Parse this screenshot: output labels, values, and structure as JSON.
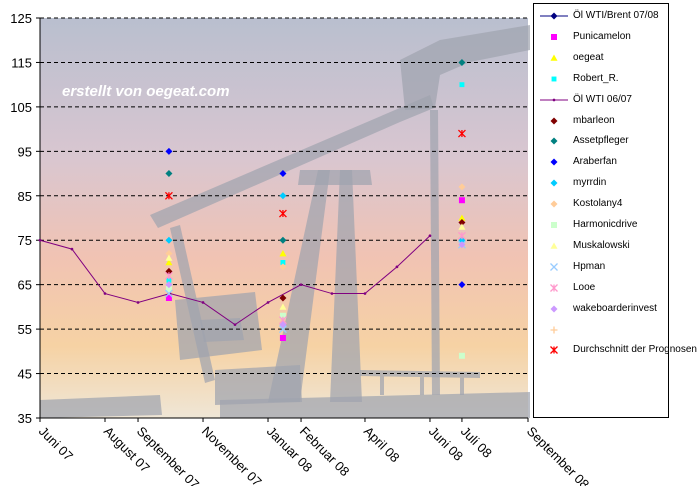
{
  "chart_data": {
    "type": "line",
    "title": "",
    "xlabel": "",
    "ylabel": "",
    "watermark": "erstellt von oegeat.com",
    "ylim": [
      35,
      125
    ],
    "y_ticks": [
      35,
      45,
      55,
      65,
      75,
      85,
      95,
      105,
      115,
      125
    ],
    "x_range": [
      "2007-06-01",
      "2008-09-01"
    ],
    "x_tick_labels": [
      {
        "date": "2007-06-01",
        "label": "Juni 07"
      },
      {
        "date": "2007-08-01",
        "label": "August 07"
      },
      {
        "date": "2007-09-01",
        "label": "September 07"
      },
      {
        "date": "2007-11-01",
        "label": "November 07"
      },
      {
        "date": "2008-01-01",
        "label": "Januar 08"
      },
      {
        "date": "2008-02-01",
        "label": "Februar 08"
      },
      {
        "date": "2008-04-01",
        "label": "April 08"
      },
      {
        "date": "2008-06-01",
        "label": "Juni 08"
      },
      {
        "date": "2008-07-01",
        "label": "Juli 08"
      },
      {
        "date": "2008-09-01",
        "label": "September 08"
      }
    ],
    "horizontal_grid": "dashed",
    "legend_position": "right",
    "series": [
      {
        "name": "Öl WTI/Brent 07/08",
        "color": "#000080",
        "marker": "diamond",
        "line": true,
        "points": []
      },
      {
        "name": "Punicamelon",
        "color": "#ff00ff",
        "marker": "square",
        "line": false,
        "points": [
          [
            "2007-09-30",
            62
          ],
          [
            "2008-01-15",
            53
          ],
          [
            "2008-07-01",
            84
          ]
        ]
      },
      {
        "name": "oegeat",
        "color": "#ffff00",
        "marker": "triangle",
        "line": false,
        "points": [
          [
            "2007-09-30",
            70
          ],
          [
            "2008-01-15",
            72
          ],
          [
            "2008-07-01",
            80
          ]
        ]
      },
      {
        "name": "Robert_R.",
        "color": "#00ffff",
        "marker": "square-small",
        "line": false,
        "points": [
          [
            "2007-09-30",
            66
          ],
          [
            "2008-01-15",
            70
          ],
          [
            "2008-07-01",
            110
          ]
        ]
      },
      {
        "name": "Öl WTI 06/07",
        "color": "#800080",
        "marker": "dot",
        "line": true,
        "points": [
          [
            "2007-06-01",
            75
          ],
          [
            "2007-07-01",
            73
          ],
          [
            "2007-08-01",
            63
          ],
          [
            "2007-09-01",
            61
          ],
          [
            "2007-10-01",
            63
          ],
          [
            "2007-11-01",
            61
          ],
          [
            "2007-12-01",
            56
          ],
          [
            "2008-01-01",
            61
          ],
          [
            "2008-02-01",
            65
          ],
          [
            "2008-03-01",
            63
          ],
          [
            "2008-04-01",
            63
          ],
          [
            "2008-05-01",
            69
          ],
          [
            "2008-06-01",
            76
          ]
        ]
      },
      {
        "name": "mbarleon",
        "color": "#800000",
        "marker": "diamond",
        "line": false,
        "points": [
          [
            "2007-09-30",
            68
          ],
          [
            "2008-01-15",
            62
          ],
          [
            "2008-07-01",
            79
          ]
        ]
      },
      {
        "name": "Assetpfleger",
        "color": "#008080",
        "marker": "diamond",
        "line": false,
        "points": [
          [
            "2007-09-30",
            90
          ],
          [
            "2008-01-15",
            75
          ],
          [
            "2008-07-01",
            115
          ]
        ]
      },
      {
        "name": "Araberfan",
        "color": "#0000ff",
        "marker": "diamond",
        "line": false,
        "points": [
          [
            "2007-09-30",
            95
          ],
          [
            "2008-01-15",
            90
          ],
          [
            "2008-07-01",
            65
          ]
        ]
      },
      {
        "name": "myrrdin",
        "color": "#00ccff",
        "marker": "diamond",
        "line": false,
        "points": [
          [
            "2007-09-30",
            75
          ],
          [
            "2008-01-15",
            85
          ],
          [
            "2008-07-01",
            75
          ]
        ]
      },
      {
        "name": "Kostolany4",
        "color": "#ffcc99",
        "marker": "diamond",
        "line": false,
        "points": [
          [
            "2007-09-30",
            72
          ],
          [
            "2008-01-15",
            69
          ],
          [
            "2008-07-01",
            87
          ]
        ]
      },
      {
        "name": "Harmonicdrive",
        "color": "#ccffcc",
        "marker": "square",
        "line": false,
        "points": [
          [
            "2007-09-30",
            64
          ],
          [
            "2008-01-15",
            58
          ],
          [
            "2008-07-01",
            49
          ]
        ]
      },
      {
        "name": "Muskalowski",
        "color": "#ffff99",
        "marker": "triangle",
        "line": false,
        "points": [
          [
            "2007-09-30",
            71
          ],
          [
            "2008-01-15",
            60
          ],
          [
            "2008-07-01",
            78
          ]
        ]
      },
      {
        "name": "Hpman",
        "color": "#99ccff",
        "marker": "x",
        "line": false,
        "points": [
          [
            "2007-09-30",
            63
          ],
          [
            "2008-01-15",
            55
          ],
          [
            "2008-07-01",
            74
          ]
        ]
      },
      {
        "name": "Looe",
        "color": "#ff99cc",
        "marker": "star",
        "line": false,
        "points": [
          [
            "2007-09-30",
            67
          ],
          [
            "2008-01-15",
            57
          ],
          [
            "2008-07-01",
            76
          ]
        ]
      },
      {
        "name": "wakeboarderinvest",
        "color": "#cc99ff",
        "marker": "diamond",
        "line": false,
        "points": [
          [
            "2007-09-30",
            65
          ],
          [
            "2008-01-15",
            56
          ],
          [
            "2008-07-01",
            74
          ]
        ]
      },
      {
        "name": "",
        "color": "#ffcc99",
        "marker": "plus",
        "line": false,
        "points": []
      },
      {
        "name": "Durchschnitt der Prognosen",
        "color": "#ff0000",
        "marker": "asterisk",
        "line": false,
        "points": [
          [
            "2007-09-30",
            85
          ],
          [
            "2008-01-15",
            81
          ],
          [
            "2008-07-01",
            99
          ]
        ]
      }
    ]
  }
}
